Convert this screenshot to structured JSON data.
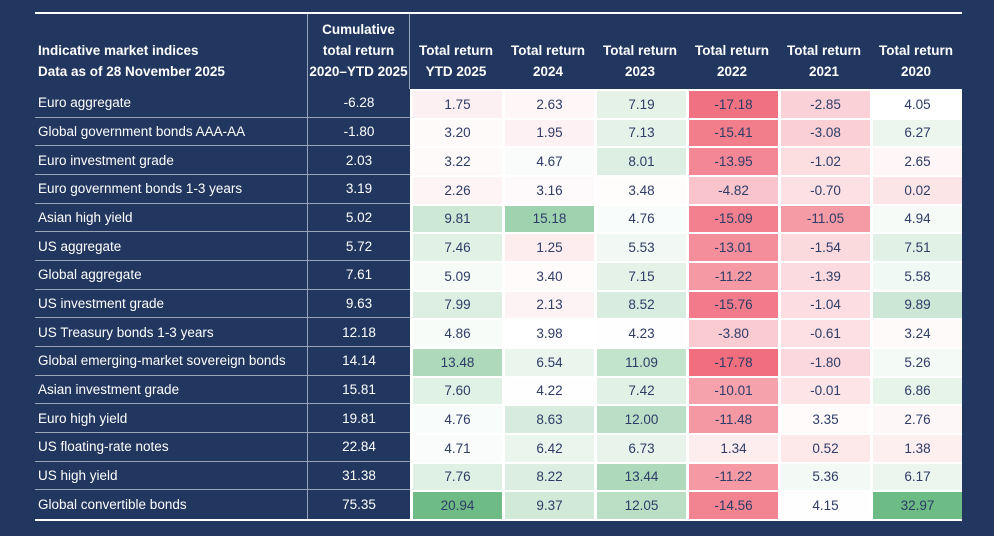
{
  "chart_data": {
    "type": "table",
    "title": "Indicative market indices",
    "subtitle": "Data as of 28 November 2025",
    "columns": [
      {
        "id": "cumulative",
        "lines": [
          "Cumulative",
          "total return",
          "2020–YTD 2025"
        ]
      },
      {
        "id": "ytd-2025",
        "lines": [
          "Total return",
          "YTD 2025"
        ]
      },
      {
        "id": "2024",
        "lines": [
          "Total return",
          "2024"
        ]
      },
      {
        "id": "2023",
        "lines": [
          "Total return",
          "2023"
        ]
      },
      {
        "id": "2022",
        "lines": [
          "Total return",
          "2022"
        ]
      },
      {
        "id": "2021",
        "lines": [
          "Total return",
          "2021"
        ]
      },
      {
        "id": "2020",
        "lines": [
          "Total return",
          "2020"
        ]
      }
    ],
    "rows": [
      {
        "label": "Euro aggregate",
        "cumulative": -6.28,
        "returns": [
          1.75,
          2.63,
          7.19,
          -17.18,
          -2.85,
          4.05
        ]
      },
      {
        "label": "Global government bonds AAA-AA",
        "cumulative": -1.8,
        "returns": [
          3.2,
          1.95,
          7.13,
          -15.41,
          -3.08,
          6.27
        ]
      },
      {
        "label": "Euro investment grade",
        "cumulative": 2.03,
        "returns": [
          3.22,
          4.67,
          8.01,
          -13.95,
          -1.02,
          2.65
        ]
      },
      {
        "label": "Euro government bonds 1-3 years",
        "cumulative": 3.19,
        "returns": [
          2.26,
          3.16,
          3.48,
          -4.82,
          -0.7,
          0.02
        ]
      },
      {
        "label": "Asian high yield",
        "cumulative": 5.02,
        "returns": [
          9.81,
          15.18,
          4.76,
          -15.09,
          -11.05,
          4.94
        ]
      },
      {
        "label": "US aggregate",
        "cumulative": 5.72,
        "returns": [
          7.46,
          1.25,
          5.53,
          -13.01,
          -1.54,
          7.51
        ]
      },
      {
        "label": "Global aggregate",
        "cumulative": 7.61,
        "returns": [
          5.09,
          3.4,
          7.15,
          -11.22,
          -1.39,
          5.58
        ]
      },
      {
        "label": "US investment grade",
        "cumulative": 9.63,
        "returns": [
          7.99,
          2.13,
          8.52,
          -15.76,
          -1.04,
          9.89
        ]
      },
      {
        "label": "US Treasury bonds 1-3 years",
        "cumulative": 12.18,
        "returns": [
          4.86,
          3.98,
          4.23,
          -3.8,
          -0.61,
          3.24
        ]
      },
      {
        "label": "Global emerging-market sovereign bonds",
        "cumulative": 14.14,
        "returns": [
          13.48,
          6.54,
          11.09,
          -17.78,
          -1.8,
          5.26
        ]
      },
      {
        "label": "Asian investment grade",
        "cumulative": 15.81,
        "returns": [
          7.6,
          4.22,
          7.42,
          -10.01,
          -0.01,
          6.86
        ]
      },
      {
        "label": "Euro high yield",
        "cumulative": 19.81,
        "returns": [
          4.76,
          8.63,
          12.0,
          -11.48,
          3.35,
          2.76
        ]
      },
      {
        "label": "US floating-rate notes",
        "cumulative": 22.84,
        "returns": [
          4.71,
          6.42,
          6.73,
          1.34,
          0.52,
          1.38
        ]
      },
      {
        "label": "US high yield",
        "cumulative": 31.38,
        "returns": [
          7.76,
          8.22,
          13.44,
          -11.22,
          5.36,
          6.17
        ]
      },
      {
        "label": "Global convertible bonds",
        "cumulative": 75.35,
        "returns": [
          20.94,
          9.37,
          12.05,
          -14.56,
          4.15,
          32.97
        ]
      }
    ],
    "heatmap": {
      "negative_color": "#f06e7e",
      "neutral_color": "#ffffff",
      "positive_color": "#6dbb85",
      "min": -17.78,
      "mid": 4.0,
      "green_anchor": 21.0
    },
    "layout": {
      "grid": "white gridlines between colored cells",
      "legend": "none"
    }
  },
  "colors": {
    "background": "#22375f",
    "header_text": "#ffffff",
    "row_text": "#ffffff",
    "cell_text": "#2e3c66",
    "separator": "rgba(255,255,255,0.55)",
    "table_border": "#ffffff"
  }
}
